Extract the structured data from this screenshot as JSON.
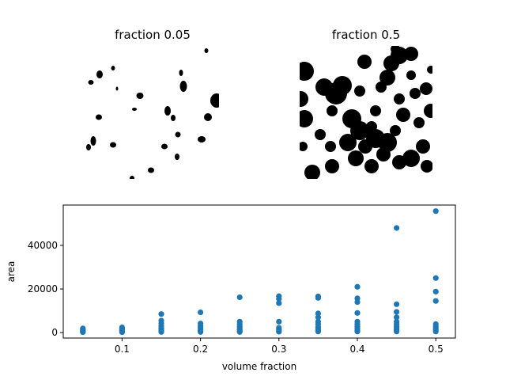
{
  "panels": {
    "left_title": "fraction 0.05",
    "right_title": "fraction 0.5"
  },
  "chart_data": {
    "type": "scatter",
    "xlabel": "volume fraction",
    "ylabel": "area",
    "xlim": [
      0.025,
      0.525
    ],
    "ylim": [
      -2500,
      58500
    ],
    "xticks": [
      0.1,
      0.2,
      0.3,
      0.4,
      0.5
    ],
    "yticks": [
      0,
      20000,
      40000
    ],
    "grid": false,
    "marker_color": "#1f77b4",
    "points": [
      [
        0.05,
        200
      ],
      [
        0.05,
        500
      ],
      [
        0.05,
        800
      ],
      [
        0.05,
        1100
      ],
      [
        0.05,
        1500
      ],
      [
        0.05,
        1900
      ],
      [
        0.1,
        200
      ],
      [
        0.1,
        500
      ],
      [
        0.1,
        900
      ],
      [
        0.1,
        1300
      ],
      [
        0.1,
        1800
      ],
      [
        0.1,
        2400
      ],
      [
        0.15,
        300
      ],
      [
        0.15,
        700
      ],
      [
        0.15,
        1200
      ],
      [
        0.15,
        2000
      ],
      [
        0.15,
        3000
      ],
      [
        0.15,
        4200
      ],
      [
        0.15,
        5500
      ],
      [
        0.15,
        8500
      ],
      [
        0.2,
        300
      ],
      [
        0.2,
        700
      ],
      [
        0.2,
        1300
      ],
      [
        0.2,
        2200
      ],
      [
        0.2,
        3000
      ],
      [
        0.2,
        4200
      ],
      [
        0.2,
        9300
      ],
      [
        0.25,
        300
      ],
      [
        0.25,
        700
      ],
      [
        0.25,
        1200
      ],
      [
        0.25,
        1900
      ],
      [
        0.25,
        2700
      ],
      [
        0.25,
        3800
      ],
      [
        0.25,
        5000
      ],
      [
        0.25,
        16200
      ],
      [
        0.3,
        400
      ],
      [
        0.3,
        900
      ],
      [
        0.3,
        1500
      ],
      [
        0.3,
        2200
      ],
      [
        0.3,
        5000
      ],
      [
        0.3,
        13500
      ],
      [
        0.3,
        15500
      ],
      [
        0.3,
        16700
      ],
      [
        0.35,
        500
      ],
      [
        0.35,
        1000
      ],
      [
        0.35,
        1700
      ],
      [
        0.35,
        2500
      ],
      [
        0.35,
        3800
      ],
      [
        0.35,
        5000
      ],
      [
        0.35,
        7000
      ],
      [
        0.35,
        8800
      ],
      [
        0.35,
        15900
      ],
      [
        0.35,
        16600
      ],
      [
        0.4,
        500
      ],
      [
        0.4,
        1100
      ],
      [
        0.4,
        1900
      ],
      [
        0.4,
        2700
      ],
      [
        0.4,
        3800
      ],
      [
        0.4,
        5000
      ],
      [
        0.4,
        9000
      ],
      [
        0.4,
        14000
      ],
      [
        0.4,
        15700
      ],
      [
        0.4,
        21000
      ],
      [
        0.45,
        500
      ],
      [
        0.45,
        1100
      ],
      [
        0.45,
        1800
      ],
      [
        0.45,
        2700
      ],
      [
        0.45,
        3800
      ],
      [
        0.45,
        5000
      ],
      [
        0.45,
        7000
      ],
      [
        0.45,
        9500
      ],
      [
        0.45,
        13000
      ],
      [
        0.45,
        48000
      ],
      [
        0.5,
        500
      ],
      [
        0.5,
        1200
      ],
      [
        0.5,
        2000
      ],
      [
        0.5,
        2800
      ],
      [
        0.5,
        3900
      ],
      [
        0.5,
        14500
      ],
      [
        0.5,
        18800
      ],
      [
        0.5,
        25000
      ],
      [
        0.5,
        55700
      ]
    ]
  }
}
